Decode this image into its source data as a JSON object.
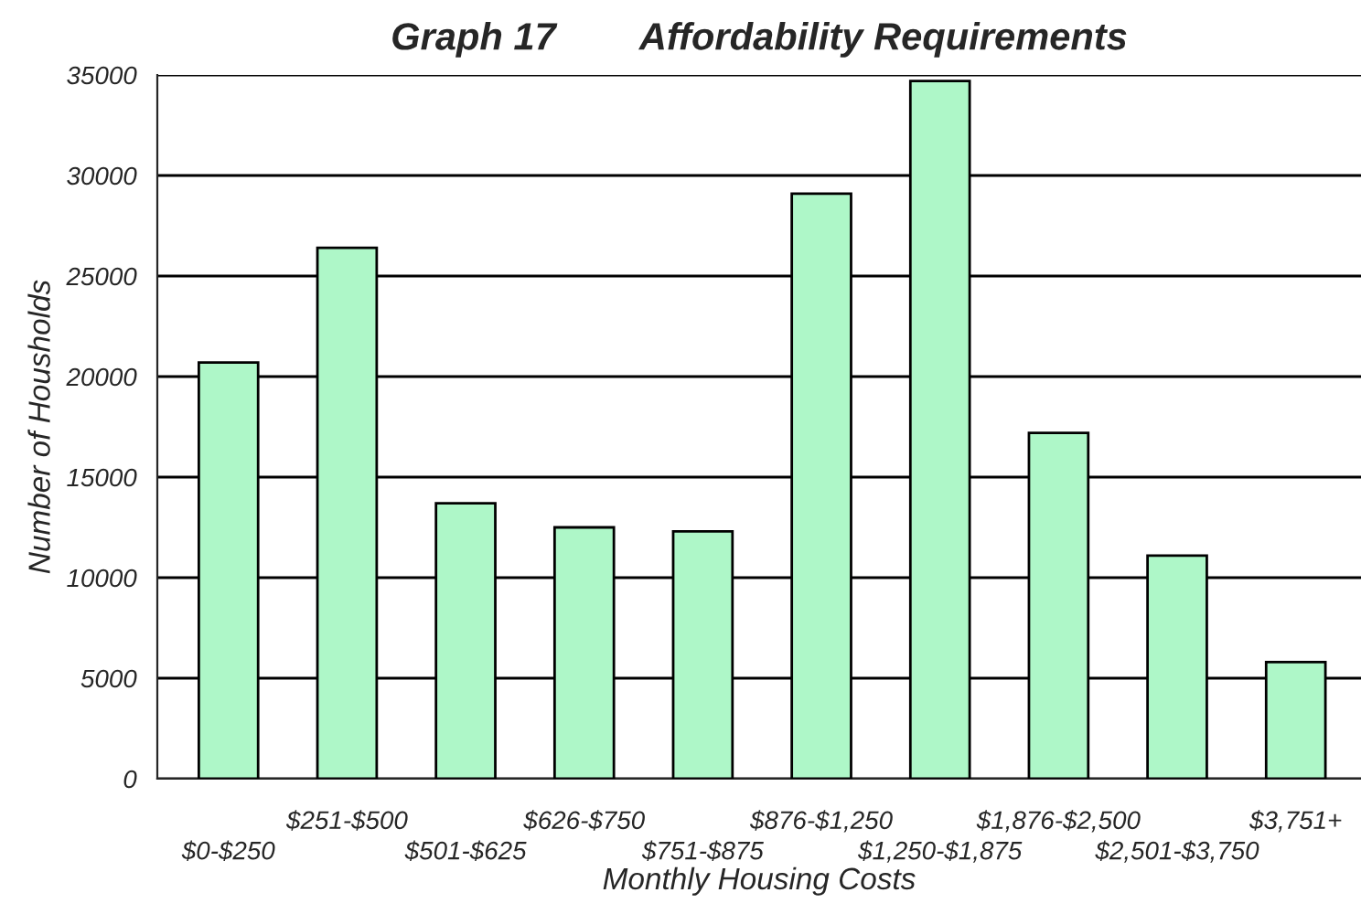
{
  "chart_data": {
    "type": "bar",
    "title": "Graph 17        Affordability Requirements",
    "xlabel": "Monthly Housing Costs",
    "ylabel": "Number of Housholds",
    "categories": [
      "$0-$250",
      "$251-$500",
      "$501-$625",
      "$626-$750",
      "$751-$875",
      "$876-$1,250",
      "$1,250-$1,875",
      "$1,876-$2,500",
      "$2,501-$3,750",
      "$3,751+"
    ],
    "values": [
      20700,
      26400,
      13700,
      12500,
      12300,
      29100,
      34700,
      17200,
      11100,
      5800
    ],
    "color": "#aef7c8",
    "ylim": [
      0,
      35000
    ],
    "yticks": [
      0,
      5000,
      10000,
      15000,
      20000,
      25000,
      30000,
      35000
    ],
    "grid": "y"
  }
}
